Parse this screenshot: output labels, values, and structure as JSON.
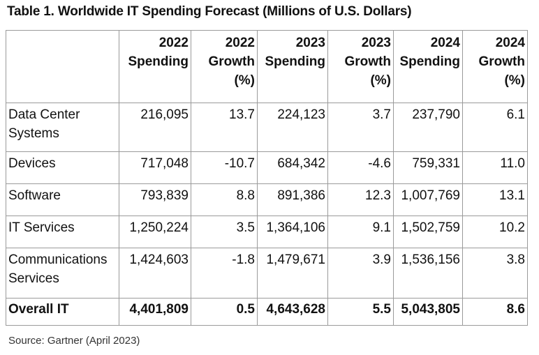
{
  "title": "Table 1. Worldwide IT Spending Forecast (Millions of U.S. Dollars)",
  "source": "Source: Gartner (April 2023)",
  "chart_data": {
    "type": "table",
    "title": "Table 1. Worldwide IT Spending Forecast (Millions of U.S. Dollars)",
    "columns": [
      {
        "key": "label",
        "lines": []
      },
      {
        "key": "s2022",
        "lines": [
          "2022",
          "Spending"
        ]
      },
      {
        "key": "g2022",
        "lines": [
          "2022",
          "Growth",
          "(%)"
        ]
      },
      {
        "key": "s2023",
        "lines": [
          "2023",
          "Spending"
        ]
      },
      {
        "key": "g2023",
        "lines": [
          "2023",
          "Growth",
          "(%)"
        ]
      },
      {
        "key": "s2024",
        "lines": [
          "2024",
          "Spending"
        ]
      },
      {
        "key": "g2024",
        "lines": [
          "2024",
          "Growth",
          "(%)"
        ]
      }
    ],
    "rows": [
      {
        "label": "Data Center Systems",
        "cells": [
          "216,095",
          "13.7",
          "224,123",
          "3.7",
          "237,790",
          "6.1"
        ]
      },
      {
        "label": "Devices",
        "cells": [
          "717,048",
          "-10.7",
          "684,342",
          "-4.6",
          "759,331",
          "11.0"
        ]
      },
      {
        "label": "Software",
        "cells": [
          "793,839",
          "8.8",
          "891,386",
          "12.3",
          "1,007,769",
          "13.1"
        ]
      },
      {
        "label": "IT Services",
        "cells": [
          "1,250,224",
          "3.5",
          "1,364,106",
          "9.1",
          "1,502,759",
          "10.2"
        ]
      },
      {
        "label": "Communications Services",
        "cells": [
          "1,424,603",
          "-1.8",
          "1,479,671",
          "3.9",
          "1,536,156",
          "3.8"
        ]
      },
      {
        "label": "Overall IT",
        "cells": [
          "4,401,809",
          "0.5",
          "4,643,628",
          "5.5",
          "5,043,805",
          "8.6"
        ]
      }
    ]
  }
}
